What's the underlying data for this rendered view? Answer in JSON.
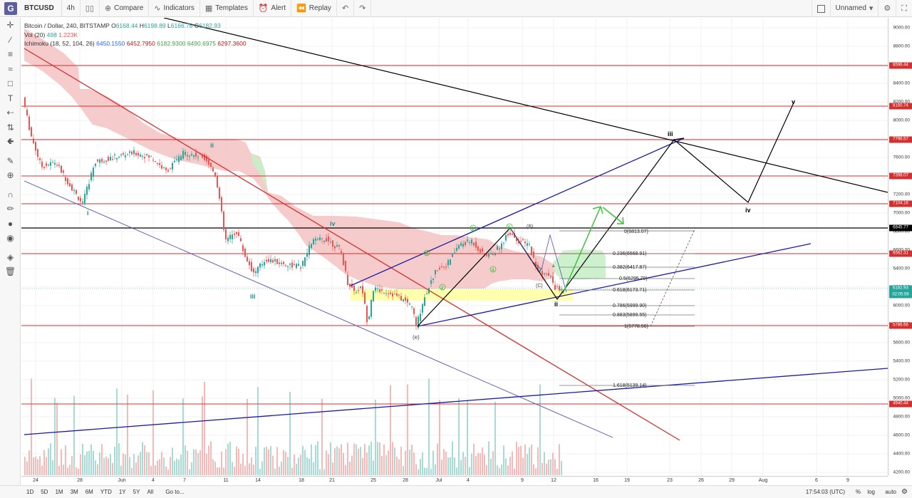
{
  "topbar": {
    "logo": "G",
    "symbol": "BTCUSD",
    "interval": "4h",
    "compare": "Compare",
    "indicators": "Indicators",
    "templates": "Templates",
    "alert": "Alert",
    "replay": "Replay",
    "layout_name": "Unnamed"
  },
  "legend": {
    "pair": "Bitcoin / Dollar, 240, BITSTAMP",
    "o_label": "O",
    "o": "6168.44",
    "h_label": "H",
    "h": "6198.89",
    "l_label": "L",
    "l": "6166.78",
    "c_label": "C",
    "c": "6182.93",
    "vol_label": "Vol (20)",
    "vol1": "498",
    "vol2": "1.223K",
    "ichi_label": "Ichimoku (18, 52, 104, 26)",
    "ichi1": "6450.1550",
    "ichi2": "6452.7950",
    "ichi3": "6182.9300",
    "ichi4": "6490.6975",
    "ichi5": "6297.3600"
  },
  "price_axis": {
    "ticks": [
      "9000.00",
      "8800.00",
      "8600.00",
      "8400.00",
      "8200.00",
      "8000.00",
      "7800.00",
      "7600.00",
      "7400.00",
      "7200.00",
      "7000.00",
      "6800.00",
      "6600.00",
      "6400.00",
      "6200.00",
      "6000.00",
      "5800.00",
      "5600.00",
      "5400.00",
      "5200.00",
      "5000.00",
      "4800.00",
      "4600.00",
      "4400.00",
      "4200.00"
    ],
    "tags": {
      "t1": "8596.44",
      "t2": "8150.74",
      "t3": "7796.57",
      "t4": "7398.07",
      "t5": "7104.16",
      "t6": "6845.77",
      "t7": "6562.31",
      "t8": "6182.93",
      "t9": "02:05:56",
      "t10": "5786.66",
      "t11": "4940.44"
    }
  },
  "time_axis": {
    "labels": [
      "24",
      "28",
      "Jun",
      "4",
      "7",
      "11",
      "14",
      "18",
      "21",
      "25",
      "28",
      "Jul",
      "4",
      "9",
      "12",
      "16",
      "19",
      "23",
      "26",
      "29",
      "Aug",
      "6",
      "9"
    ]
  },
  "waves": {
    "i": "i",
    "ii": "ii",
    "iii_low": "iii",
    "iv_low": "iv",
    "e": "(e)",
    "iii_top": "iii",
    "iv_top": "iv",
    "v_top": "v",
    "ii_now": "ii",
    "b": "(B)",
    "cc": "(C)",
    "n1": "1",
    "n2": "2",
    "n3": "3",
    "n4": "4",
    "n5": "5",
    "na": "a"
  },
  "fib": {
    "f0": "0(6813.07)",
    "f236": "0.236(6568.91)",
    "f382": "0.382(6417.87)",
    "f5": "0.5(6295.79)",
    "f618": "0.618(6173.71)",
    "f786": "0.786(5999.90)",
    "f883": "0.883(5899.55)",
    "f1": "1(5778.56)",
    "f1618": "1.618(5139.14)"
  },
  "bottombar": {
    "r1": "1D",
    "r2": "5D",
    "r3": "1M",
    "r4": "3M",
    "r5": "6M",
    "r6": "YTD",
    "r7": "1Y",
    "r8": "5Y",
    "r9": "All",
    "goto": "Go to...",
    "clock": "17:54:03 (UTC)",
    "pct": "%",
    "log": "log",
    "auto": "auto"
  },
  "colors": {
    "red_line": "#d32f2f",
    "navy_line": "#1a1aa6",
    "black_line": "#000000",
    "cloud_red": "#f4c2c2",
    "cloud_green": "#c8f0c8",
    "fib_zone": "#ffff99"
  }
}
